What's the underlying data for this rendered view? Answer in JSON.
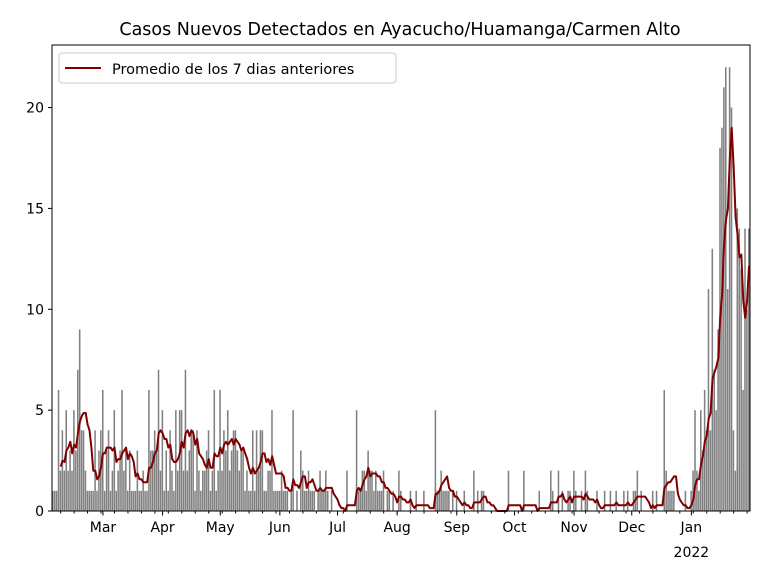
{
  "chart_data": {
    "type": "bar",
    "title": "Casos Nuevos Detectados en Ayacucho/Huamanga/Carmen Alto",
    "xlabel": "",
    "ylabel": "",
    "ylim": [
      0,
      23.1
    ],
    "yticks": [
      0,
      5,
      10,
      15,
      20
    ],
    "xticks": [
      {
        "month": "2021-03",
        "label": "Mar"
      },
      {
        "month": "2021-04",
        "label": "Apr"
      },
      {
        "month": "2021-05",
        "label": "May"
      },
      {
        "month": "2021-06",
        "label": "Jun"
      },
      {
        "month": "2021-07",
        "label": "Jul"
      },
      {
        "month": "2021-08",
        "label": "Aug"
      },
      {
        "month": "2021-09",
        "label": "Sep"
      },
      {
        "month": "2021-10",
        "label": "Oct"
      },
      {
        "month": "2021-11",
        "label": "Nov"
      },
      {
        "month": "2021-12",
        "label": "Dec"
      },
      {
        "month": "2022-01",
        "label": "Jan",
        "sublabel": "2022"
      }
    ],
    "grid": false,
    "legend": {
      "placement": "top-left",
      "entries": [
        {
          "name": "Promedio de los 7 dias anteriores",
          "type": "line",
          "color": "#800000"
        }
      ]
    },
    "colors": {
      "bars": "#808080",
      "average": "#800000"
    },
    "series": [
      {
        "type": "bar",
        "daily_cases_by_month": [
          {
            "month": "2021-02",
            "first_day": 3,
            "values": [
              1,
              1,
              1,
              6,
              2,
              4,
              2,
              5,
              2,
              3,
              2,
              5,
              3,
              7,
              9,
              4,
              4,
              2,
              1,
              1,
              1,
              1,
              4,
              1,
              3,
              4
            ]
          },
          {
            "month": "2021-03",
            "first_day": 1,
            "values": [
              6,
              1,
              3,
              4,
              1,
              2,
              5,
              1,
              2,
              3,
              6,
              2,
              3,
              1,
              3,
              1,
              1,
              1,
              3,
              1,
              1,
              2,
              1,
              1,
              6,
              3,
              3,
              4,
              3,
              7,
              2
            ]
          },
          {
            "month": "2021-04",
            "first_day": 1,
            "values": [
              5,
              1,
              3,
              1,
              4,
              2,
              1,
              5,
              2,
              5,
              5,
              2,
              7,
              2,
              3,
              4,
              4,
              1,
              4,
              2,
              1,
              2,
              2,
              3,
              4,
              1,
              2,
              6,
              1,
              2
            ]
          },
          {
            "month": "2021-05",
            "first_day": 1,
            "values": [
              6,
              2,
              4,
              3,
              5,
              2,
              3,
              4,
              4,
              3,
              2,
              3,
              3,
              1,
              2,
              1,
              1,
              4,
              1,
              4,
              2,
              4,
              4,
              1,
              1,
              2,
              2,
              5,
              1,
              1,
              1
            ]
          },
          {
            "month": "2021-06",
            "first_day": 1,
            "values": [
              1,
              2,
              1,
              1,
              1,
              0,
              1,
              5,
              0,
              1,
              0,
              3,
              2,
              1,
              1,
              2,
              1,
              1,
              1,
              0,
              1,
              2,
              1,
              1,
              2,
              1,
              0,
              1,
              0,
              0
            ]
          },
          {
            "month": "2021-07",
            "first_day": 1,
            "values": [
              0,
              0,
              0,
              0,
              0,
              2,
              0,
              0,
              0,
              0,
              5,
              1,
              1,
              2,
              2,
              1,
              3,
              2,
              2,
              1,
              2,
              1,
              1,
              1,
              2,
              0,
              1,
              1,
              0,
              1,
              0
            ]
          },
          {
            "month": "2021-08",
            "first_day": 1,
            "values": [
              0,
              2,
              1,
              0,
              0,
              0,
              0,
              1,
              0,
              0,
              1,
              0,
              0,
              0,
              1,
              0,
              0,
              0,
              0,
              0,
              5,
              1,
              1,
              2,
              1,
              1,
              1,
              1,
              0,
              1,
              0
            ]
          },
          {
            "month": "2021-09",
            "first_day": 1,
            "values": [
              1,
              0,
              0,
              0,
              1,
              0,
              0,
              0,
              0,
              2,
              0,
              1,
              0,
              1,
              1,
              0,
              0,
              0,
              0,
              0,
              0,
              0,
              0,
              0,
              0,
              0,
              0,
              2,
              0,
              0
            ]
          },
          {
            "month": "2021-10",
            "first_day": 1,
            "values": [
              0,
              0,
              0,
              0,
              0,
              2,
              0,
              0,
              0,
              0,
              0,
              0,
              0,
              1,
              0,
              0,
              0,
              0,
              0,
              2,
              1,
              0,
              0,
              2,
              0,
              1,
              0,
              0,
              1,
              1,
              0
            ]
          },
          {
            "month": "2021-11",
            "first_day": 1,
            "values": [
              2,
              1,
              0,
              0,
              1,
              0,
              2,
              1,
              0,
              0,
              0,
              0,
              1,
              0,
              0,
              0,
              1,
              0,
              0,
              1,
              0,
              0,
              1,
              0,
              0,
              0,
              1,
              0,
              1,
              0
            ]
          },
          {
            "month": "2021-12",
            "first_day": 1,
            "values": [
              0,
              1,
              1,
              2,
              0,
              1,
              0,
              0,
              0,
              0,
              0,
              1,
              0,
              1,
              0,
              0,
              0,
              6,
              2,
              1,
              1,
              1,
              1,
              0,
              0,
              0,
              0,
              0,
              1,
              0,
              0
            ]
          },
          {
            "month": "2022-01",
            "first_day": 1,
            "values": [
              1,
              2,
              5,
              2,
              1,
              5,
              3,
              6,
              4,
              11,
              4,
              13,
              7,
              5,
              9,
              18,
              19,
              21,
              22,
              11,
              22,
              20,
              4,
              2,
              15,
              14,
              12,
              6,
              14,
              10,
              14
            ]
          }
        ]
      },
      {
        "type": "line",
        "name": "Promedio de los 7 dias anteriores",
        "window_days": 7
      }
    ]
  }
}
